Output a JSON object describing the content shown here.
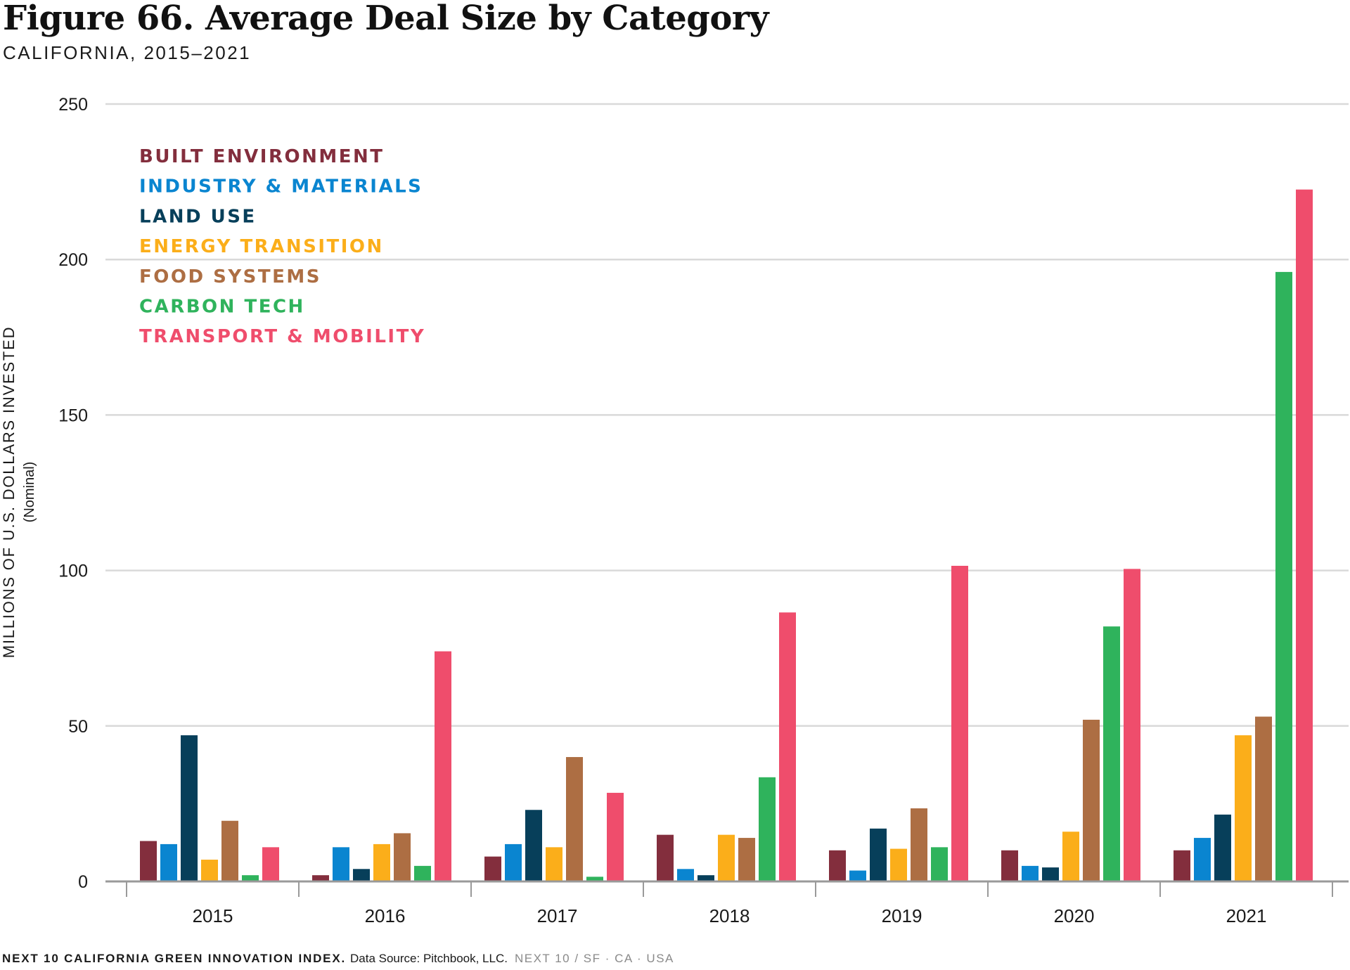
{
  "header": {
    "title": "Figure 66. Average Deal Size by Category",
    "subtitle": "CALIFORNIA, 2015–2021"
  },
  "footer": {
    "index": "NEXT 10 CALIFORNIA GREEN INNOVATION INDEX.",
    "source": "Data Source: Pitchbook, LLC.",
    "brand": "NEXT 10  /  SF · CA · USA"
  },
  "chart_data": {
    "type": "bar",
    "title": "Figure 66. Average Deal Size by Category",
    "subtitle": "CALIFORNIA, 2015–2021",
    "ylabel": "MILLIONS OF U.S. DOLLARS INVESTED",
    "ylabel_sub": "(Nominal)",
    "xlabel": "",
    "ylim": [
      0,
      250
    ],
    "yticks": [
      0,
      50,
      100,
      150,
      200,
      250
    ],
    "grid": true,
    "legend_position": "top-left",
    "categories": [
      "2015",
      "2016",
      "2017",
      "2018",
      "2019",
      "2020",
      "2021"
    ],
    "series": [
      {
        "name": "BUILT ENVIRONMENT",
        "color": "#832e3d",
        "values": [
          13,
          2,
          8,
          15,
          10,
          10,
          10
        ]
      },
      {
        "name": "INDUSTRY & MATERIALS",
        "color": "#0a85d0",
        "values": [
          12,
          11,
          12,
          4,
          3.5,
          5,
          14
        ]
      },
      {
        "name": "LAND USE",
        "color": "#073f5a",
        "values": [
          47,
          4,
          23,
          2,
          17,
          4.5,
          21.5
        ]
      },
      {
        "name": "ENERGY TRANSITION",
        "color": "#fbae1a",
        "values": [
          7,
          12,
          11,
          15,
          10.5,
          16,
          47
        ]
      },
      {
        "name": "FOOD SYSTEMS",
        "color": "#ad6e43",
        "values": [
          19.5,
          15.5,
          40,
          14,
          23.5,
          52,
          53
        ]
      },
      {
        "name": "CARBON TECH",
        "color": "#2fb35c",
        "values": [
          2,
          5,
          1.5,
          33.5,
          11,
          82,
          196
        ]
      },
      {
        "name": "TRANSPORT & MOBILITY",
        "color": "#ef4d6c",
        "values": [
          11,
          74,
          28.5,
          86.5,
          101.5,
          100.5,
          222.5
        ]
      }
    ]
  }
}
